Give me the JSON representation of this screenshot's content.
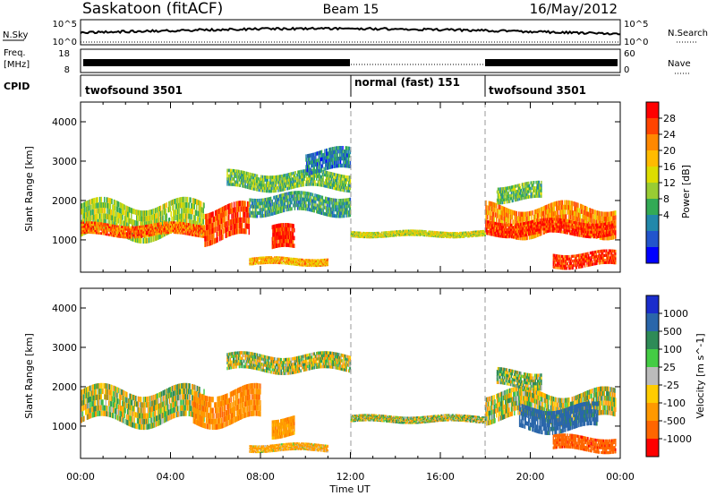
{
  "header": {
    "title": "Saskatoon (fitACF)",
    "beam": "Beam 15",
    "date": "16/May/2012"
  },
  "noise_panel": {
    "left_label": "N.Sky",
    "right_label": "N.Search",
    "left_ticks": [
      "10^5",
      "10^0"
    ],
    "right_ticks": [
      "10^5",
      "10^0"
    ]
  },
  "freq_panel": {
    "left_label_line1": "Freq.",
    "left_label_line2": "[MHz]",
    "right_label": "Nave",
    "left_ticks": [
      "18",
      "8"
    ],
    "right_ticks": [
      "60",
      "0"
    ]
  },
  "cpid_panel": {
    "label": "CPID",
    "segments": [
      {
        "name": "twofsound 3501",
        "start_hour": 0,
        "end_hour": 12
      },
      {
        "name": "normal (fast) 151",
        "start_hour": 12,
        "end_hour": 18
      },
      {
        "name": "twofsound 3501",
        "start_hour": 18,
        "end_hour": 24
      }
    ]
  },
  "axes": {
    "xlabel": "Time UT",
    "ylabel": "Slant Range [km]",
    "x_ticks": [
      "00:00",
      "04:00",
      "08:00",
      "12:00",
      "16:00",
      "20:00",
      "00:00"
    ],
    "y_ticks": [
      "1000",
      "2000",
      "3000",
      "4000"
    ]
  },
  "colorbars": {
    "power": {
      "label": "Power [dB]",
      "ticks": [
        "28",
        "24",
        "20",
        "16",
        "12",
        "8",
        "4"
      ],
      "colors": [
        "#ff0000",
        "#ff4400",
        "#ff8800",
        "#ffbb00",
        "#dddd00",
        "#99cc33",
        "#33aa55",
        "#2288aa",
        "#2255cc",
        "#0000ff"
      ]
    },
    "velocity": {
      "label": "Velocity [m s^-1]",
      "ticks": [
        "1000",
        "500",
        "100",
        "25",
        "-25",
        "-100",
        "-500",
        "-1000"
      ],
      "colors": [
        "#1a2dcc",
        "#2a66aa",
        "#2e8b57",
        "#44cc44",
        "#bbbbbb",
        "#ffcc00",
        "#ff9900",
        "#ff6600",
        "#ff0000"
      ]
    }
  },
  "chart_data": [
    {
      "type": "heatmap",
      "panel": "power",
      "xlabel": "Time UT",
      "ylabel": "Slant Range [km]",
      "xlim": [
        0,
        24
      ],
      "ylim": [
        180,
        4500
      ],
      "value_units": "dB",
      "value_range": [
        0,
        30
      ],
      "features": [
        {
          "t_start": 0.0,
          "t_end": 5.5,
          "range_center": 1500,
          "range_width": 700,
          "value": 14
        },
        {
          "t_start": 0.0,
          "t_end": 5.5,
          "range_center": 1250,
          "range_width": 250,
          "value": 24
        },
        {
          "t_start": 5.5,
          "t_end": 7.5,
          "range_center": 1400,
          "range_width": 700,
          "value": 26
        },
        {
          "t_start": 6.5,
          "t_end": 12.0,
          "range_center": 2500,
          "range_width": 350,
          "value": 12
        },
        {
          "t_start": 7.5,
          "t_end": 12.0,
          "range_center": 1900,
          "range_width": 400,
          "value": 10
        },
        {
          "t_start": 8.5,
          "t_end": 9.5,
          "range_center": 1000,
          "range_width": 500,
          "value": 27
        },
        {
          "t_start": 7.5,
          "t_end": 11.0,
          "range_center": 450,
          "range_width": 150,
          "value": 20
        },
        {
          "t_start": 10.0,
          "t_end": 12.0,
          "range_center": 3000,
          "range_width": 450,
          "value": 7
        },
        {
          "t_start": 12.0,
          "t_end": 18.0,
          "range_center": 1150,
          "range_width": 120,
          "value": 16
        },
        {
          "t_start": 18.0,
          "t_end": 23.8,
          "range_center": 1500,
          "range_width": 600,
          "value": 22
        },
        {
          "t_start": 18.0,
          "t_end": 23.8,
          "range_center": 1300,
          "range_width": 300,
          "value": 27
        },
        {
          "t_start": 18.5,
          "t_end": 20.5,
          "range_center": 2200,
          "range_width": 350,
          "value": 12
        },
        {
          "t_start": 21.0,
          "t_end": 23.8,
          "range_center": 500,
          "range_width": 300,
          "value": 27
        }
      ]
    },
    {
      "type": "heatmap",
      "panel": "velocity",
      "xlabel": "Time UT",
      "ylabel": "Slant Range [km]",
      "xlim": [
        0,
        24
      ],
      "ylim": [
        180,
        4500
      ],
      "value_units": "m s^-1",
      "value_range": [
        -1000,
        1000
      ],
      "features": [
        {
          "t_start": 0.0,
          "t_end": 5.5,
          "range_center": 1500,
          "range_width": 700,
          "value": 0
        },
        {
          "t_start": 5.0,
          "t_end": 8.0,
          "range_center": 1500,
          "range_width": 700,
          "value": -400
        },
        {
          "t_start": 6.5,
          "t_end": 12.0,
          "range_center": 2600,
          "range_width": 350,
          "value": 0
        },
        {
          "t_start": 8.5,
          "t_end": 9.5,
          "range_center": 1000,
          "range_width": 400,
          "value": -300
        },
        {
          "t_start": 7.5,
          "t_end": 11.0,
          "range_center": 450,
          "range_width": 150,
          "value": -200
        },
        {
          "t_start": 12.0,
          "t_end": 18.0,
          "range_center": 1180,
          "range_width": 140,
          "value": 0
        },
        {
          "t_start": 18.0,
          "t_end": 23.8,
          "range_center": 1500,
          "range_width": 600,
          "value": 0
        },
        {
          "t_start": 19.5,
          "t_end": 23.0,
          "range_center": 1200,
          "range_width": 500,
          "value": 700
        },
        {
          "t_start": 18.5,
          "t_end": 20.5,
          "range_center": 2200,
          "range_width": 350,
          "value": 80
        },
        {
          "t_start": 21.0,
          "t_end": 23.8,
          "range_center": 550,
          "range_width": 300,
          "value": -800
        }
      ]
    }
  ]
}
